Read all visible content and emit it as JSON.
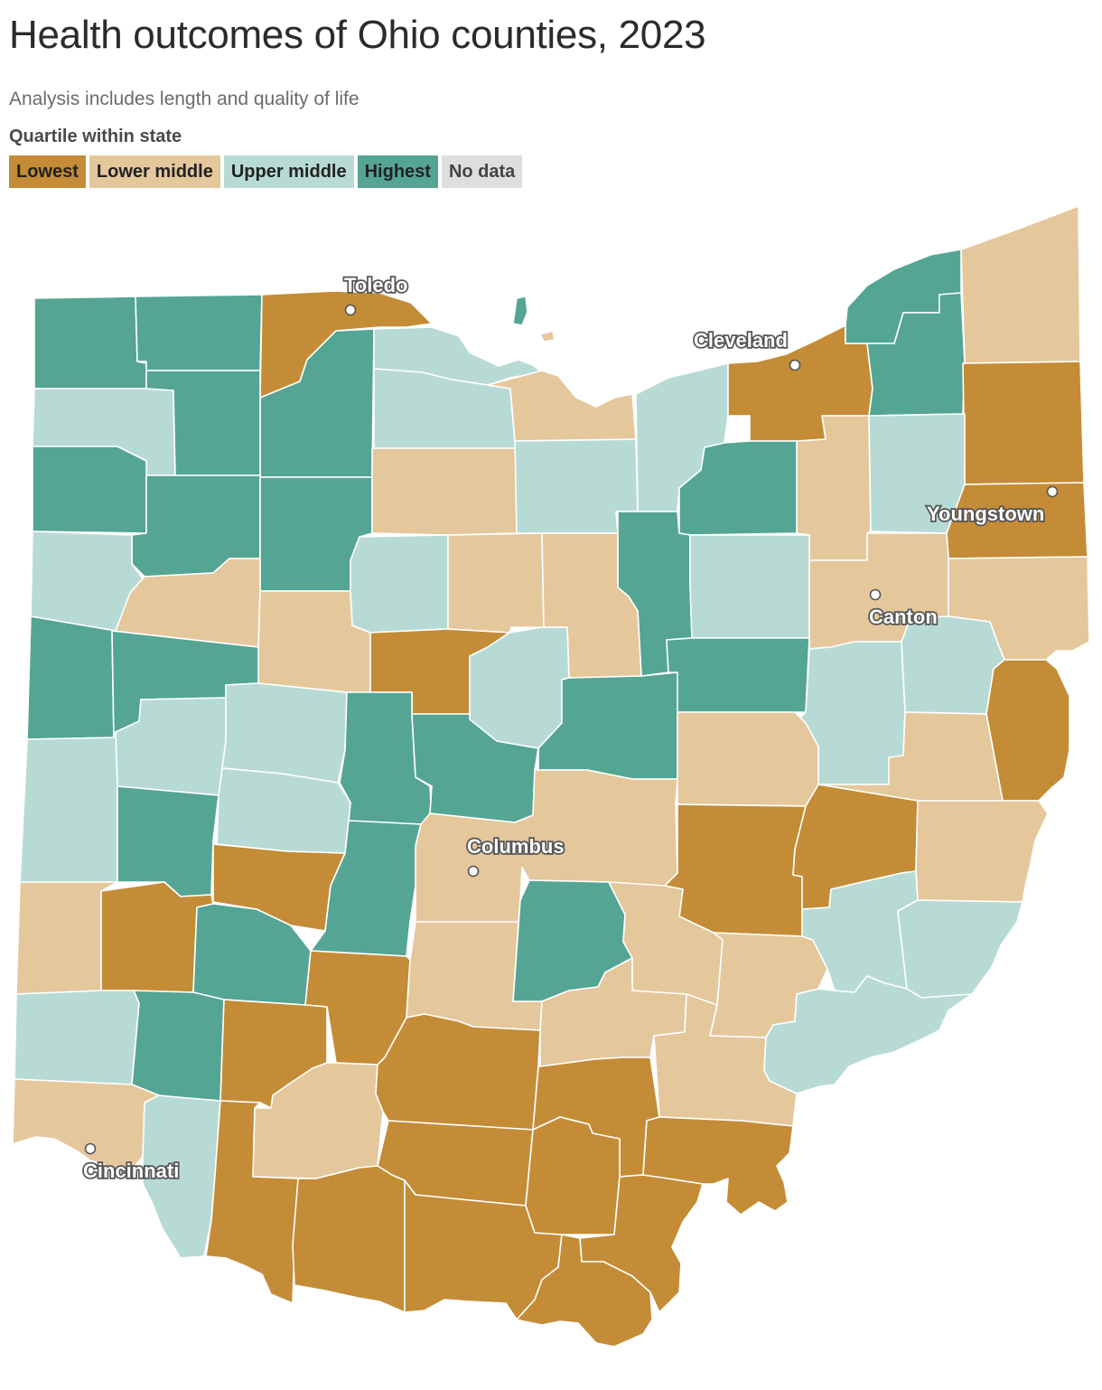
{
  "title": "Health outcomes of Ohio counties, 2023",
  "subtitle": "Analysis includes length and quality of life",
  "legend": {
    "title": "Quartile within state",
    "items": [
      {
        "label": "Lowest",
        "color": "#c48c36"
      },
      {
        "label": "Lower middle",
        "color": "#e5c79c"
      },
      {
        "label": "Upper middle",
        "color": "#b7dbd4"
      },
      {
        "label": "Highest",
        "color": "#54a594"
      },
      {
        "label": "No data",
        "color": "#dedede"
      }
    ]
  },
  "cities": [
    {
      "name": "Toledo"
    },
    {
      "name": "Cleveland"
    },
    {
      "name": "Youngstown"
    },
    {
      "name": "Canton"
    },
    {
      "name": "Columbus"
    },
    {
      "name": "Cincinnati"
    }
  ],
  "quartile_colors": {
    "lowest": "#c48c36",
    "lower_middle": "#e5c79c",
    "upper_middle": "#b7dbd4",
    "highest": "#54a594"
  }
}
